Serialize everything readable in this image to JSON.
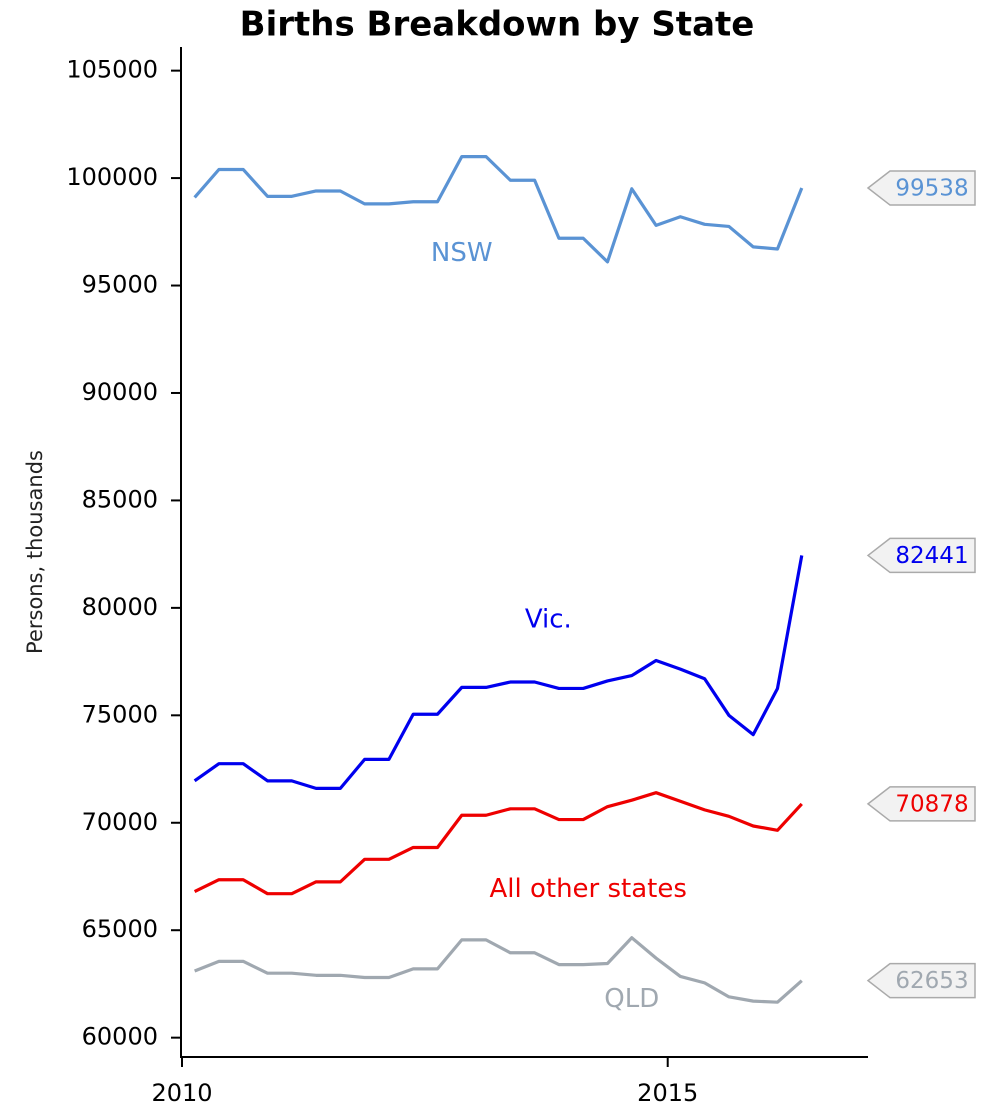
{
  "chart_data": {
    "type": "line",
    "title": "Births Breakdown by State",
    "ylabel": "Persons, thousands",
    "x": [
      2010.13,
      2010.38,
      2010.63,
      2010.88,
      2011.13,
      2011.38,
      2011.63,
      2011.88,
      2012.13,
      2012.38,
      2012.63,
      2012.88,
      2013.13,
      2013.38,
      2013.63,
      2013.88,
      2014.13,
      2014.38,
      2014.63,
      2014.88,
      2015.13,
      2015.38,
      2015.63,
      2015.88,
      2016.13,
      2016.38
    ],
    "series": [
      {
        "name": "NSW",
        "color": "#5a93d4",
        "values": [
          99100,
          100400,
          100400,
          99150,
          99150,
          99400,
          99400,
          98800,
          98800,
          98900,
          98900,
          101000,
          101000,
          99900,
          99900,
          97200,
          97200,
          96100,
          99500,
          97800,
          98200,
          97850,
          97750,
          96800,
          96700,
          99538
        ]
      },
      {
        "name": "Vic.",
        "color": "#0000ee",
        "values": [
          71950,
          72750,
          72750,
          71950,
          71950,
          71600,
          71600,
          72950,
          72950,
          75050,
          75050,
          76300,
          76300,
          76550,
          76550,
          76250,
          76250,
          76600,
          76850,
          77550,
          77150,
          76700,
          75000,
          74100,
          76250,
          82441
        ]
      },
      {
        "name": "All other states",
        "color": "#ee0000",
        "values": [
          66800,
          67350,
          67350,
          66700,
          66700,
          67250,
          67250,
          68300,
          68300,
          68850,
          68850,
          70350,
          70350,
          70650,
          70650,
          70150,
          70150,
          70750,
          71050,
          71400,
          71000,
          70600,
          70300,
          69850,
          69650,
          70878
        ]
      },
      {
        "name": "QLD",
        "color": "#a0a8b0",
        "values": [
          63100,
          63550,
          63550,
          63000,
          63000,
          62900,
          62900,
          62800,
          62800,
          63200,
          63200,
          64550,
          64550,
          63950,
          63950,
          63400,
          63400,
          63450,
          64650,
          63700,
          62850,
          62550,
          61900,
          61700,
          61650,
          62653
        ]
      }
    ],
    "xlim": [
      2010,
      2017
    ],
    "xticks": [
      2010,
      2015
    ],
    "ylim": [
      59100,
      106100
    ],
    "yticks": [
      60000,
      65000,
      70000,
      75000,
      80000,
      85000,
      90000,
      95000,
      100000,
      105000
    ],
    "grid": false
  }
}
